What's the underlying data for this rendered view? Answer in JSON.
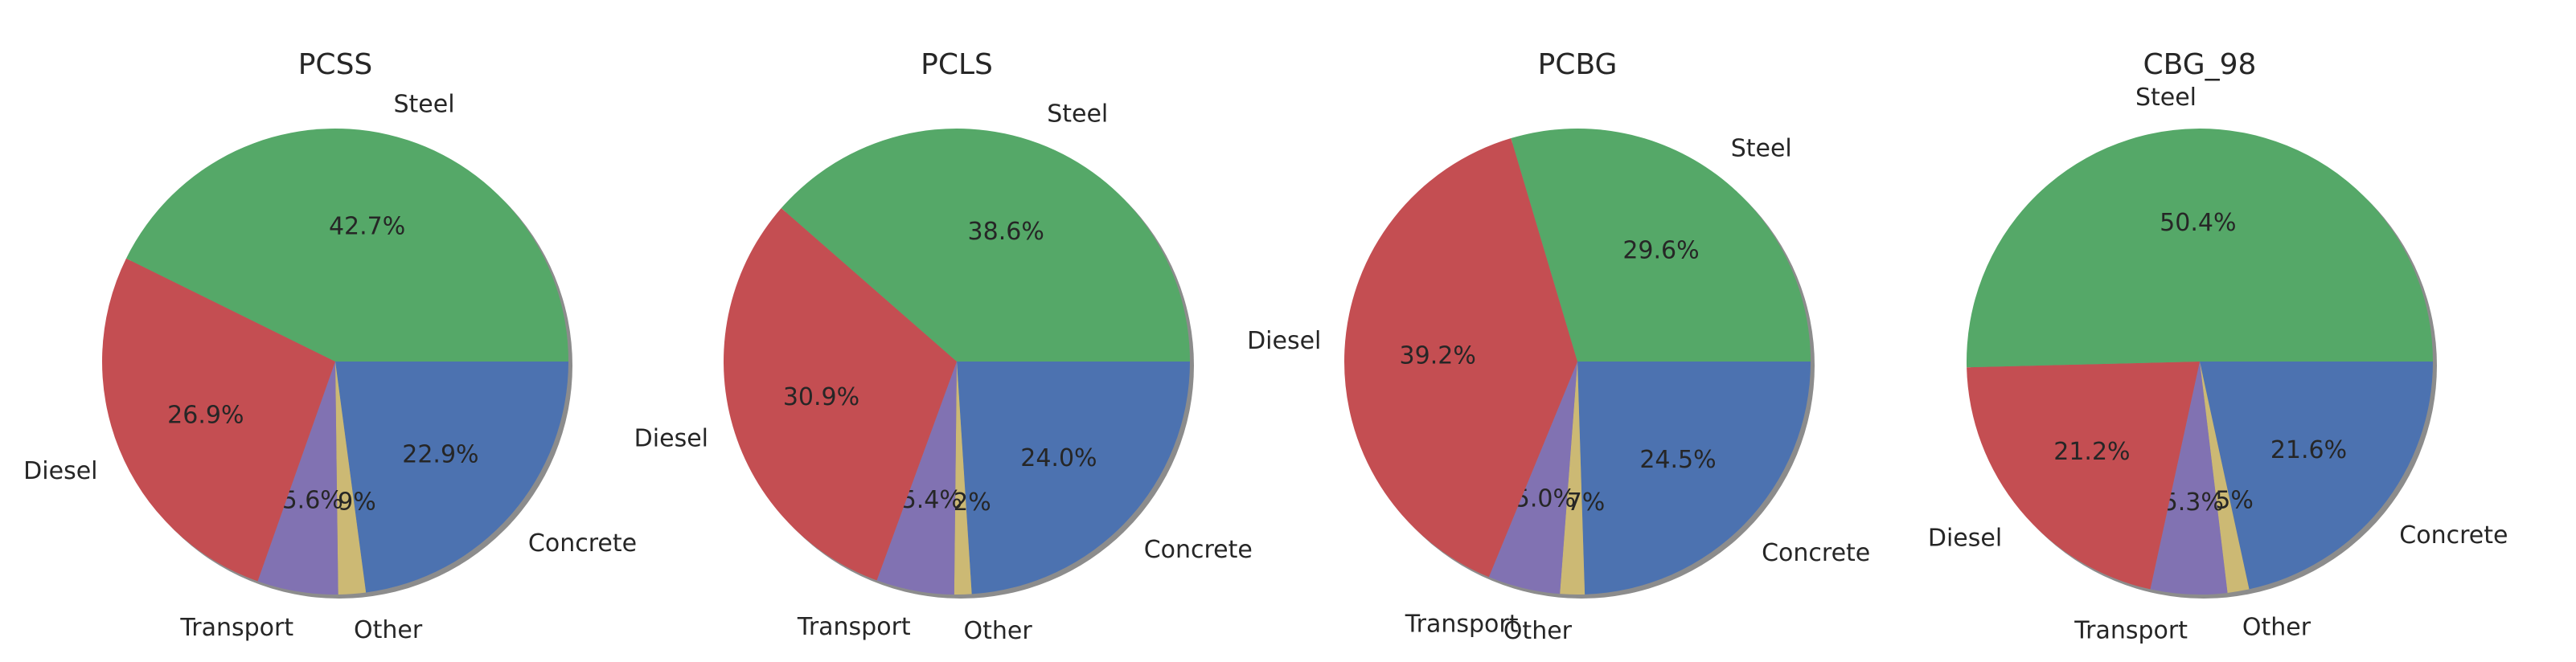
{
  "chart_data": [
    {
      "type": "pie",
      "title": "PCSS",
      "labels": [
        "Concrete",
        "Other",
        "Transport",
        "Diesel",
        "Steel"
      ],
      "values": [
        22.9,
        1.9,
        5.6,
        26.9,
        42.7
      ],
      "autopct": [
        "22.9%",
        "1.9%",
        "5.6%",
        "26.9%",
        "42.7%"
      ]
    },
    {
      "type": "pie",
      "title": "PCLS",
      "labels": [
        "Concrete",
        "Other",
        "Transport",
        "Diesel",
        "Steel"
      ],
      "values": [
        24.0,
        1.2,
        5.4,
        30.9,
        38.6
      ],
      "autopct": [
        "24.0%",
        "1.2%",
        "5.4%",
        "30.9%",
        "38.6%"
      ]
    },
    {
      "type": "pie",
      "title": "PCBG",
      "labels": [
        "Concrete",
        "Other",
        "Transport",
        "Diesel",
        "Steel"
      ],
      "values": [
        24.5,
        1.7,
        5.0,
        39.2,
        29.6
      ],
      "autopct": [
        "24.5%",
        "1.7%",
        "5.0%",
        "39.2%",
        "29.6%"
      ]
    },
    {
      "type": "pie",
      "title": "CBG_98",
      "labels": [
        "Concrete",
        "Other",
        "Transport",
        "Diesel",
        "Steel"
      ],
      "values": [
        21.6,
        1.5,
        5.3,
        21.2,
        50.4
      ],
      "autopct": [
        "21.6%",
        "1.5%",
        "5.3%",
        "21.2%",
        "50.4%"
      ]
    }
  ],
  "colors": {
    "Concrete": "#4c72b0",
    "Other": "#ccb974",
    "Transport": "#8172b2",
    "Diesel": "#c44e52",
    "Steel": "#55a868",
    "shadow": "#8c8c8c",
    "text": "#262626"
  }
}
